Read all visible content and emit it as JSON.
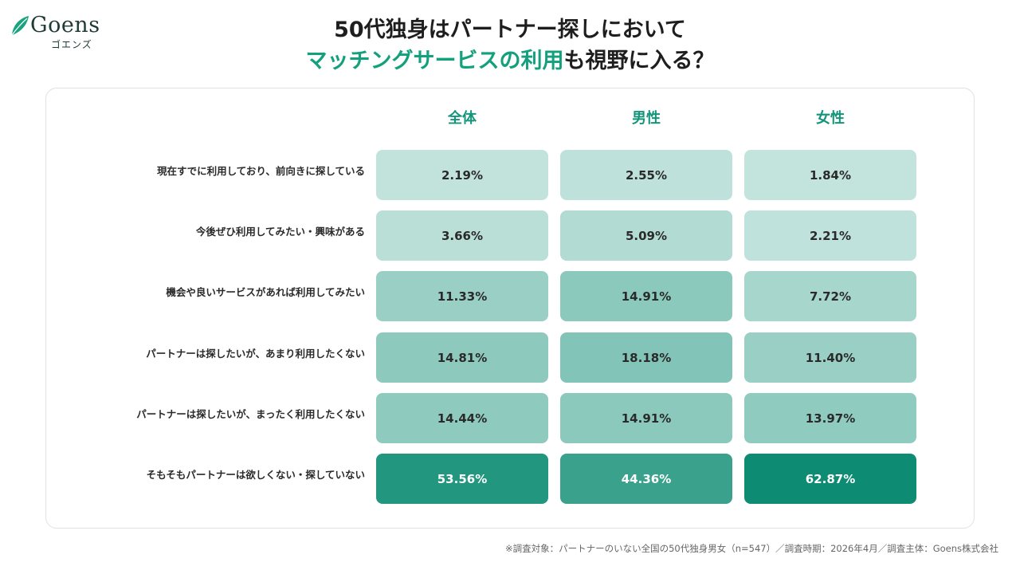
{
  "brand": {
    "name": "Goens",
    "kana": "ゴエンズ"
  },
  "title": {
    "line1": "50代独身はパートナー探しにおいて",
    "line2_accent": "マッチングサービスの利用",
    "line2_rest": "も視野に入る？"
  },
  "colors": {
    "accent": "#13a07c",
    "header": "#13957a",
    "cell_low": "#d2ebe6",
    "cell_high": "#0e8c73"
  },
  "chart_data": {
    "type": "table",
    "categories": [
      "現在すでに利用しており、前向きに探している",
      "今後ぜひ利用してみたい・興味がある",
      "機会や良いサービスがあれば利用してみたい",
      "パートナーは探したいが、あまり利用したくない",
      "パートナーは探したいが、まったく利用したくない",
      "そもそもパートナーは欲しくない・探していない"
    ],
    "series": [
      {
        "name": "全体",
        "values": [
          2.19,
          3.66,
          11.33,
          14.81,
          14.44,
          53.56
        ]
      },
      {
        "name": "男性",
        "values": [
          2.55,
          5.09,
          14.91,
          18.18,
          14.91,
          44.36
        ]
      },
      {
        "name": "女性",
        "values": [
          1.84,
          2.21,
          7.72,
          11.4,
          13.97,
          62.87
        ]
      }
    ],
    "value_labels": [
      [
        "2.19%",
        "3.66%",
        "11.33%",
        "14.81%",
        "14.44%",
        "53.56%"
      ],
      [
        "2.55%",
        "5.09%",
        "14.91%",
        "18.18%",
        "14.91%",
        "44.36%"
      ],
      [
        "1.84%",
        "2.21%",
        "7.72%",
        "11.40%",
        "13.97%",
        "62.87%"
      ]
    ],
    "unit": "%"
  },
  "footnote": "※調査対象：パートナーのいない全国の50代独身男女（n=547）／調査時期：2026年4月／調査主体：Goens株式会社"
}
